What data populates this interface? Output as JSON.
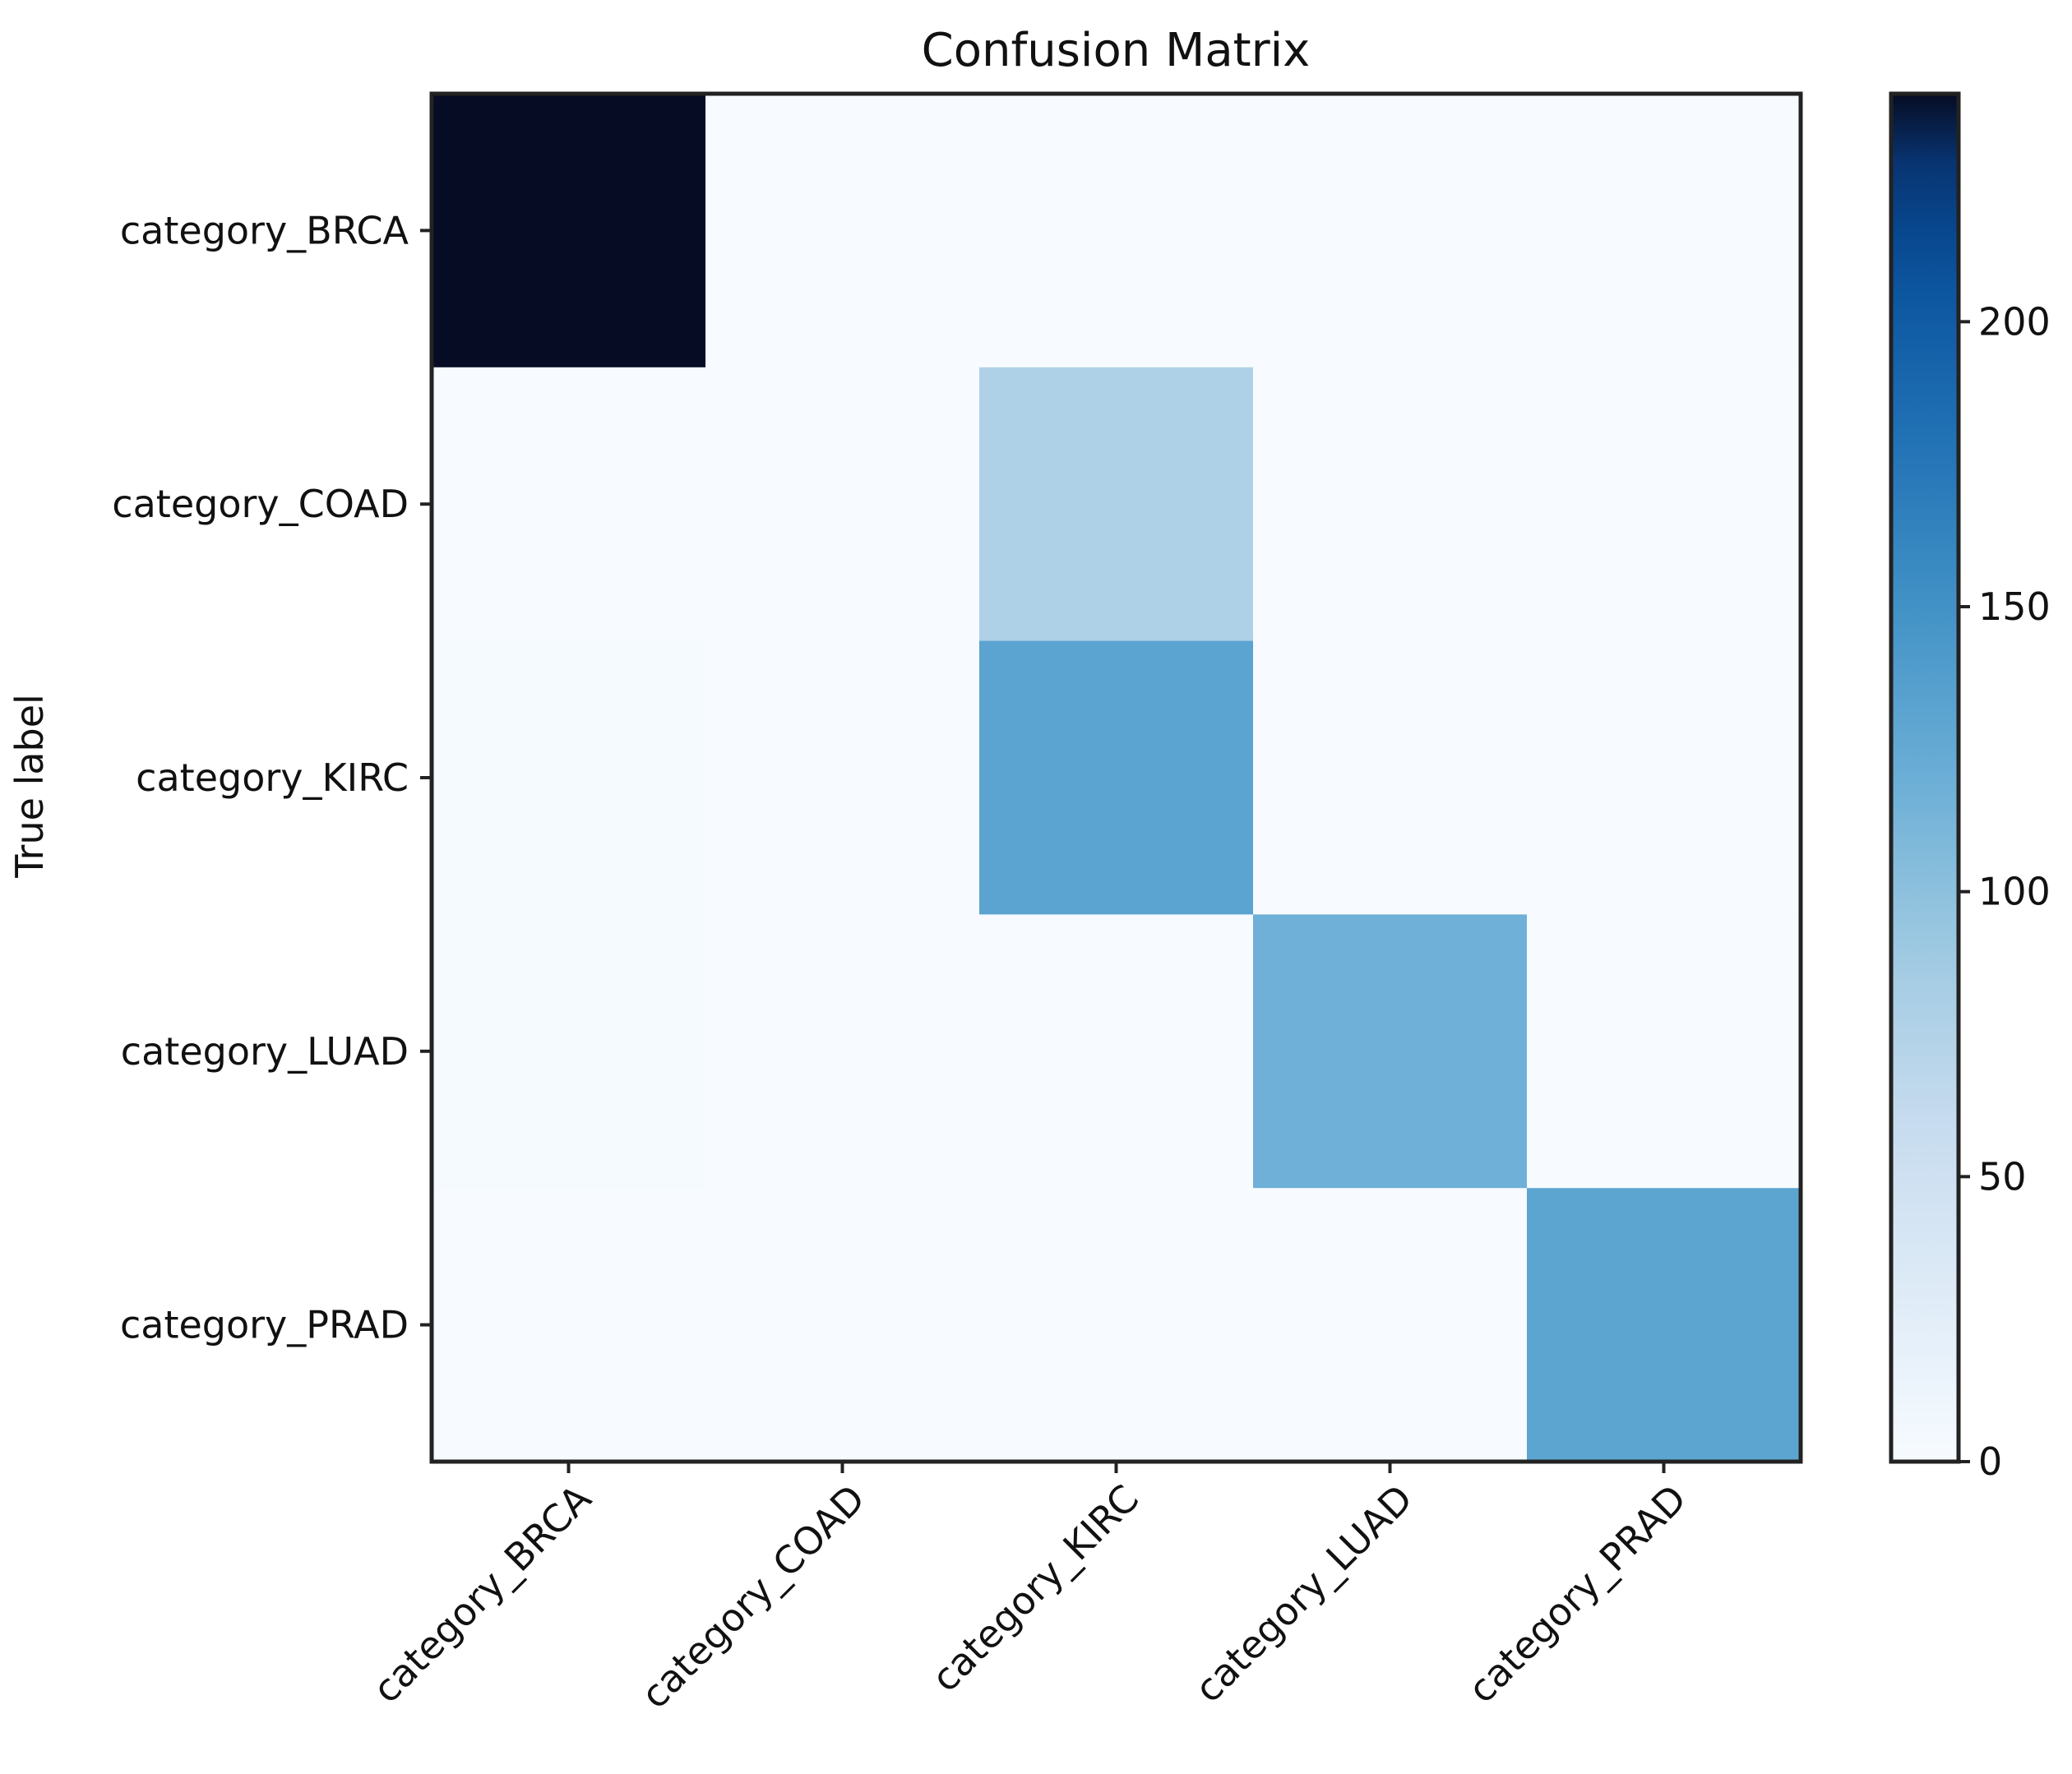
{
  "chart_data": {
    "type": "heatmap",
    "title": "Confusion Matrix",
    "ylabel": "True label",
    "xlabel": "",
    "row_labels": [
      "category_BRCA",
      "category_COAD",
      "category_KIRC",
      "category_LUAD",
      "category_PRAD"
    ],
    "col_labels": [
      "category_BRCA",
      "category_COAD",
      "category_KIRC",
      "category_LUAD",
      "category_PRAD"
    ],
    "values": [
      [
        240,
        0,
        0,
        0,
        0
      ],
      [
        0,
        0,
        77,
        0,
        0
      ],
      [
        2,
        0,
        132,
        0,
        0
      ],
      [
        2,
        0,
        0,
        118,
        0
      ],
      [
        0,
        0,
        0,
        0,
        130
      ]
    ],
    "colorbar": {
      "min": 0,
      "max": 240,
      "ticks": [
        0,
        50,
        100,
        150,
        200
      ],
      "tick_labels": [
        "0",
        "50",
        "100",
        "150",
        "200"
      ],
      "colormap": "Blues"
    },
    "grid": false,
    "colors": {
      "low": "#f7fbff",
      "high": "#08306b",
      "darkest": "#060c24"
    }
  }
}
